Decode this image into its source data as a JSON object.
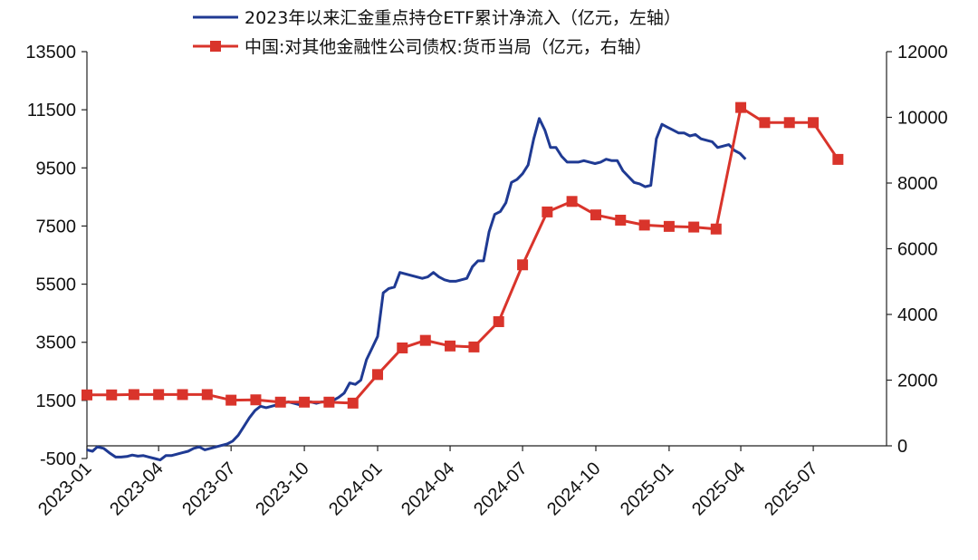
{
  "chart_data": {
    "type": "line",
    "title": "",
    "xlabel": "",
    "ylabel": "",
    "y2label": "",
    "grid": false,
    "legend_position": "top",
    "x_ticks": [
      "2023-01",
      "2023-04",
      "2023-07",
      "2023-10",
      "2024-01",
      "2024-04",
      "2024-07",
      "2024-10",
      "2025-01",
      "2025-04",
      "2025-07"
    ],
    "y_left": {
      "min": -500,
      "max": 13500,
      "ticks": [
        "-500",
        "1500",
        "3500",
        "5500",
        "7500",
        "9500",
        "11500",
        "13500"
      ]
    },
    "y_right": {
      "min": 0,
      "max": 12000,
      "ticks": [
        "0",
        "2000",
        "4000",
        "6000",
        "8000",
        "10000",
        "12000"
      ]
    },
    "series": [
      {
        "name": "2023年以来汇金重点持仓ETF累计净流入（亿元，左轴）",
        "axis": "left",
        "color": "#1f3a93",
        "marker": "none",
        "points": [
          [
            "2023-01-01",
            -200
          ],
          [
            "2023-01-08",
            -250
          ],
          [
            "2023-01-14",
            -100
          ],
          [
            "2023-01-22",
            -150
          ],
          [
            "2023-01-29",
            -300
          ],
          [
            "2023-02-06",
            -450
          ],
          [
            "2023-02-13",
            -450
          ],
          [
            "2023-02-20",
            -430
          ],
          [
            "2023-02-27",
            -380
          ],
          [
            "2023-03-06",
            -420
          ],
          [
            "2023-03-13",
            -400
          ],
          [
            "2023-03-20",
            -450
          ],
          [
            "2023-03-27",
            -500
          ],
          [
            "2023-04-03",
            -550
          ],
          [
            "2023-04-10",
            -400
          ],
          [
            "2023-04-17",
            -400
          ],
          [
            "2023-04-24",
            -350
          ],
          [
            "2023-05-01",
            -300
          ],
          [
            "2023-05-08",
            -250
          ],
          [
            "2023-05-15",
            -150
          ],
          [
            "2023-05-22",
            -100
          ],
          [
            "2023-05-29",
            -200
          ],
          [
            "2023-06-05",
            -150
          ],
          [
            "2023-06-12",
            -100
          ],
          [
            "2023-06-19",
            -50
          ],
          [
            "2023-06-26",
            0
          ],
          [
            "2023-07-03",
            100
          ],
          [
            "2023-07-10",
            300
          ],
          [
            "2023-07-17",
            600
          ],
          [
            "2023-07-24",
            900
          ],
          [
            "2023-07-31",
            1150
          ],
          [
            "2023-08-07",
            1300
          ],
          [
            "2023-08-14",
            1250
          ],
          [
            "2023-08-21",
            1300
          ],
          [
            "2023-08-28",
            1350
          ],
          [
            "2023-09-04",
            1400
          ],
          [
            "2023-09-11",
            1450
          ],
          [
            "2023-09-18",
            1400
          ],
          [
            "2023-09-25",
            1350
          ],
          [
            "2023-10-02",
            1450
          ],
          [
            "2023-10-09",
            1450
          ],
          [
            "2023-10-16",
            1400
          ],
          [
            "2023-10-23",
            1450
          ],
          [
            "2023-10-30",
            1450
          ],
          [
            "2023-11-06",
            1500
          ],
          [
            "2023-11-13",
            1600
          ],
          [
            "2023-11-20",
            1750
          ],
          [
            "2023-11-27",
            2100
          ],
          [
            "2023-12-04",
            2050
          ],
          [
            "2023-12-11",
            2200
          ],
          [
            "2023-12-18",
            2900
          ],
          [
            "2023-12-25",
            3300
          ],
          [
            "2024-01-01",
            3700
          ],
          [
            "2024-01-08",
            5200
          ],
          [
            "2024-01-15",
            5350
          ],
          [
            "2024-01-22",
            5400
          ],
          [
            "2024-01-29",
            5900
          ],
          [
            "2024-02-05",
            5850
          ],
          [
            "2024-02-12",
            5800
          ],
          [
            "2024-02-19",
            5750
          ],
          [
            "2024-02-26",
            5700
          ],
          [
            "2024-03-04",
            5750
          ],
          [
            "2024-03-11",
            5900
          ],
          [
            "2024-03-18",
            5750
          ],
          [
            "2024-03-25",
            5650
          ],
          [
            "2024-04-01",
            5600
          ],
          [
            "2024-04-08",
            5600
          ],
          [
            "2024-04-15",
            5650
          ],
          [
            "2024-04-22",
            5700
          ],
          [
            "2024-04-29",
            6100
          ],
          [
            "2024-05-06",
            6300
          ],
          [
            "2024-05-13",
            6300
          ],
          [
            "2024-05-20",
            7300
          ],
          [
            "2024-05-27",
            7900
          ],
          [
            "2024-06-03",
            8000
          ],
          [
            "2024-06-10",
            8300
          ],
          [
            "2024-06-17",
            9000
          ],
          [
            "2024-06-24",
            9100
          ],
          [
            "2024-07-01",
            9300
          ],
          [
            "2024-07-08",
            9600
          ],
          [
            "2024-07-15",
            10500
          ],
          [
            "2024-07-22",
            11200
          ],
          [
            "2024-07-29",
            10800
          ],
          [
            "2024-08-05",
            10200
          ],
          [
            "2024-08-12",
            10200
          ],
          [
            "2024-08-19",
            9900
          ],
          [
            "2024-08-26",
            9700
          ],
          [
            "2024-09-02",
            9700
          ],
          [
            "2024-09-09",
            9700
          ],
          [
            "2024-09-16",
            9750
          ],
          [
            "2024-09-23",
            9700
          ],
          [
            "2024-09-30",
            9650
          ],
          [
            "2024-10-07",
            9700
          ],
          [
            "2024-10-14",
            9800
          ],
          [
            "2024-10-21",
            9750
          ],
          [
            "2024-10-28",
            9750
          ],
          [
            "2024-11-04",
            9400
          ],
          [
            "2024-11-11",
            9200
          ],
          [
            "2024-11-18",
            9000
          ],
          [
            "2024-11-25",
            8950
          ],
          [
            "2024-12-02",
            8850
          ],
          [
            "2024-12-09",
            8900
          ],
          [
            "2024-12-16",
            10500
          ],
          [
            "2024-12-23",
            11000
          ],
          [
            "2024-12-30",
            10900
          ],
          [
            "2025-01-06",
            10800
          ],
          [
            "2025-01-13",
            10700
          ],
          [
            "2025-01-20",
            10700
          ],
          [
            "2025-01-27",
            10600
          ],
          [
            "2025-02-03",
            10650
          ],
          [
            "2025-02-10",
            10500
          ],
          [
            "2025-02-17",
            10450
          ],
          [
            "2025-02-24",
            10400
          ],
          [
            "2025-03-03",
            10200
          ],
          [
            "2025-03-10",
            10250
          ],
          [
            "2025-03-17",
            10300
          ],
          [
            "2025-03-24",
            10100
          ],
          [
            "2025-03-31",
            10000
          ],
          [
            "2025-04-07",
            9800
          ]
        ]
      },
      {
        "name": "中国:对其他金融性公司债权:货币当局（亿元，右轴）",
        "axis": "right",
        "color": "#d9342b",
        "marker": "square",
        "points": [
          [
            "2023-01-01",
            1550
          ],
          [
            "2023-02-01",
            1550
          ],
          [
            "2023-03-01",
            1560
          ],
          [
            "2023-04-01",
            1560
          ],
          [
            "2023-05-01",
            1560
          ],
          [
            "2023-06-01",
            1560
          ],
          [
            "2023-07-01",
            1390
          ],
          [
            "2023-08-01",
            1400
          ],
          [
            "2023-09-01",
            1330
          ],
          [
            "2023-10-01",
            1330
          ],
          [
            "2023-11-01",
            1330
          ],
          [
            "2023-12-01",
            1300
          ],
          [
            "2024-01-01",
            2170
          ],
          [
            "2024-02-01",
            2980
          ],
          [
            "2024-03-01",
            3210
          ],
          [
            "2024-04-01",
            3040
          ],
          [
            "2024-05-01",
            3010
          ],
          [
            "2024-06-01",
            3780
          ],
          [
            "2024-07-01",
            5510
          ],
          [
            "2024-08-01",
            7120
          ],
          [
            "2024-09-01",
            7440
          ],
          [
            "2024-10-01",
            7030
          ],
          [
            "2024-11-01",
            6870
          ],
          [
            "2024-12-01",
            6720
          ],
          [
            "2025-01-01",
            6680
          ],
          [
            "2025-02-01",
            6660
          ],
          [
            "2025-03-01",
            6600
          ],
          [
            "2025-04-01",
            10300
          ],
          [
            "2025-05-01",
            9840
          ],
          [
            "2025-06-01",
            9840
          ],
          [
            "2025-07-01",
            9840
          ],
          [
            "2025-08-01",
            8720
          ]
        ]
      }
    ]
  }
}
